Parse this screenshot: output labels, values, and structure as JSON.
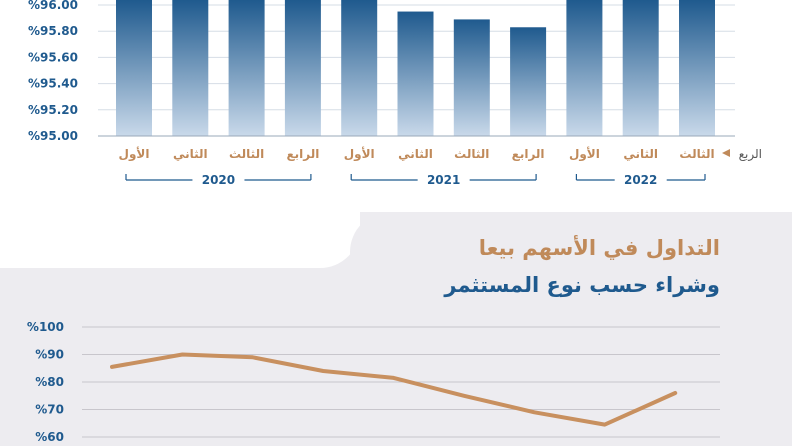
{
  "colors": {
    "bar_top": "#1f5a8e",
    "bar_bottom": "#c9d9ea",
    "line": "#c8905f",
    "accent_text": "#c08a5a",
    "axis_text": "#1f5a8e",
    "panel": "#edecf0"
  },
  "chart_data": [
    {
      "type": "bar",
      "title": "",
      "ylim": [
        95.0,
        96.0
      ],
      "y_ticks": [
        "%95.00",
        "%95.20",
        "%95.40",
        "%95.60",
        "%95.80",
        "%96.00"
      ],
      "y_tick_values": [
        95.0,
        95.2,
        95.4,
        95.6,
        95.8,
        96.0
      ],
      "axis_label": "الربع",
      "categories": [
        "الثالث",
        "الثاني",
        "الأول",
        "الرابع",
        "الثالث",
        "الثاني",
        "الأول",
        "الرابع",
        "الثالث",
        "الثاني",
        "الأول"
      ],
      "values": [
        96.05,
        96.05,
        96.05,
        95.83,
        95.89,
        95.95,
        96.05,
        96.05,
        96.05,
        96.05,
        96.05
      ],
      "year_groups": [
        {
          "label": "2022",
          "count": 3
        },
        {
          "label": "2021",
          "count": 4
        },
        {
          "label": "2020",
          "count": 4
        }
      ]
    },
    {
      "type": "line",
      "title": "التداول في الأسهم بيعا وشراء حسب نوع المستثمر",
      "title_line1": "التداول في الأسهم بيعا",
      "title_line2": "وشراء حسب نوع المستثمر",
      "ylim": [
        60,
        100
      ],
      "y_ticks": [
        "%100",
        "%90",
        "%80",
        "%70",
        "%60"
      ],
      "y_tick_values": [
        100,
        90,
        80,
        70,
        60
      ],
      "values": [
        85.5,
        90,
        89,
        84,
        81.5,
        75,
        69,
        64.5,
        76
      ]
    }
  ]
}
